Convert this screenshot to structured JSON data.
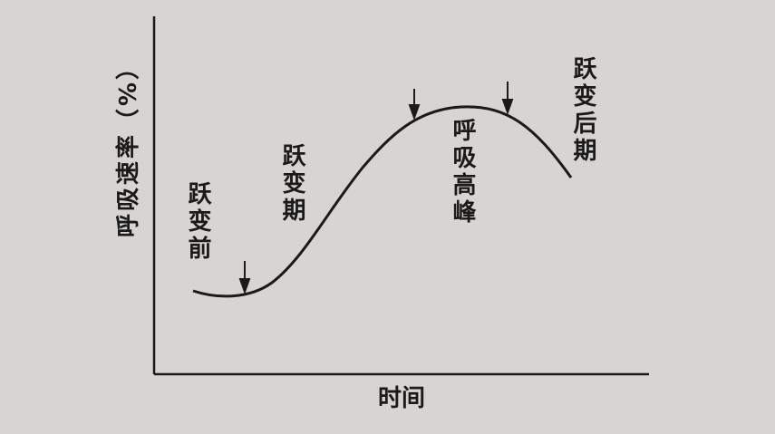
{
  "y_axis_label": "呼吸速率（%）",
  "x_axis_label": "时间",
  "phases": [
    "跃变前",
    "跃变期",
    "呼吸高峰",
    "跃变后期"
  ]
}
